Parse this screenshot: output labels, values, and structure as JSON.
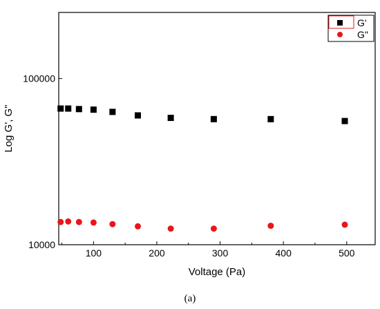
{
  "chart_data": {
    "type": "scatter",
    "xlabel": "Voltage (Pa)",
    "ylabel": "Log G', G\"",
    "caption": "(a)",
    "xlim": [
      45,
      545
    ],
    "ylim": [
      10000,
      250000
    ],
    "y_scale": "log",
    "grid": false,
    "legend_position": "top-right",
    "x_ticks": [
      100,
      200,
      300,
      400,
      500
    ],
    "x_tick_labels": [
      "100",
      "200",
      "300",
      "400",
      "500"
    ],
    "y_ticks": [
      10000,
      100000
    ],
    "y_tick_labels": [
      "10000",
      "100000"
    ],
    "series": [
      {
        "name": "G'",
        "marker": "square",
        "color": "#000000",
        "x": [
          48,
          60,
          77,
          100,
          130,
          170,
          222,
          290,
          380,
          497
        ],
        "y": [
          66000,
          66000,
          65500,
          65000,
          63000,
          60000,
          58000,
          57000,
          57000,
          55500
        ]
      },
      {
        "name": "G\"",
        "marker": "circle",
        "color": "#e8161b",
        "x": [
          48,
          60,
          77,
          100,
          130,
          170,
          222,
          290,
          380,
          497
        ],
        "y": [
          13700,
          13800,
          13700,
          13600,
          13300,
          12900,
          12500,
          12500,
          13000,
          13200
        ]
      }
    ]
  }
}
